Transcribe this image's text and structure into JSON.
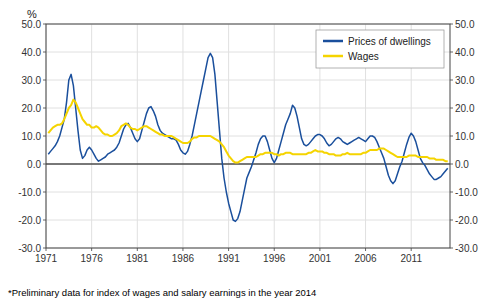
{
  "chart_data": {
    "type": "line",
    "ylabel": "%",
    "footnote": "*Preliminary data for index of wages and salary earnings in the year 2014",
    "xlim": [
      1971.0,
      2015.25
    ],
    "xticks": [
      1971,
      1976,
      1981,
      1986,
      1991,
      1996,
      2001,
      2006,
      2011
    ],
    "ylim": [
      -30.0,
      50.0
    ],
    "yticks": [
      {
        "value": -30.0,
        "label": "-30.0"
      },
      {
        "value": -20.0,
        "label": "-20.0"
      },
      {
        "value": -10.0,
        "label": "-10.0"
      },
      {
        "value": 0.0,
        "label": "0.0"
      },
      {
        "value": 10.0,
        "label": "10.0"
      },
      {
        "value": 20.0,
        "label": "20.0"
      },
      {
        "value": 30.0,
        "label": "30.0"
      },
      {
        "value": 40.0,
        "label": "40.0"
      },
      {
        "value": 50.0,
        "label": "50.0"
      }
    ],
    "y2lim": [
      -30.0,
      50.0
    ],
    "y2ticks": [
      {
        "value": -30.0,
        "label": "-30.0"
      },
      {
        "value": -20.0,
        "label": "-20.0"
      },
      {
        "value": -10.0,
        "label": "-10.0"
      },
      {
        "value": 0.0,
        "label": "0.0"
      },
      {
        "value": 10.0,
        "label": "10.0"
      },
      {
        "value": 20.0,
        "label": "20.0"
      },
      {
        "value": 30.0,
        "label": "30.0"
      },
      {
        "value": 40.0,
        "label": "40.0"
      },
      {
        "value": 50.0,
        "label": "50.0"
      }
    ],
    "grid": true,
    "legend": "upper right",
    "x": [
      1971.25,
      1971.5,
      1971.75,
      1972.0,
      1972.25,
      1972.5,
      1972.75,
      1973.0,
      1973.25,
      1973.5,
      1973.75,
      1974.0,
      1974.25,
      1974.5,
      1974.75,
      1975.0,
      1975.25,
      1975.5,
      1975.75,
      1976.0,
      1976.25,
      1976.5,
      1976.75,
      1977.0,
      1977.25,
      1977.5,
      1977.75,
      1978.0,
      1978.25,
      1978.5,
      1978.75,
      1979.0,
      1979.25,
      1979.5,
      1979.75,
      1980.0,
      1980.25,
      1980.5,
      1980.75,
      1981.0,
      1981.25,
      1981.5,
      1981.75,
      1982.0,
      1982.25,
      1982.5,
      1982.75,
      1983.0,
      1983.25,
      1983.5,
      1983.75,
      1984.0,
      1984.25,
      1984.5,
      1984.75,
      1985.0,
      1985.25,
      1985.5,
      1985.75,
      1986.0,
      1986.25,
      1986.5,
      1986.75,
      1987.0,
      1987.25,
      1987.5,
      1987.75,
      1988.0,
      1988.25,
      1988.5,
      1988.75,
      1989.0,
      1989.25,
      1989.5,
      1989.75,
      1990.0,
      1990.25,
      1990.5,
      1990.75,
      1991.0,
      1991.25,
      1991.5,
      1991.75,
      1992.0,
      1992.25,
      1992.5,
      1992.75,
      1993.0,
      1993.25,
      1993.5,
      1993.75,
      1994.0,
      1994.25,
      1994.5,
      1994.75,
      1995.0,
      1995.25,
      1995.5,
      1995.75,
      1996.0,
      1996.25,
      1996.5,
      1996.75,
      1997.0,
      1997.25,
      1997.5,
      1997.75,
      1998.0,
      1998.25,
      1998.5,
      1998.75,
      1999.0,
      1999.25,
      1999.5,
      1999.75,
      2000.0,
      2000.25,
      2000.5,
      2000.75,
      2001.0,
      2001.25,
      2001.5,
      2001.75,
      2002.0,
      2002.25,
      2002.5,
      2002.75,
      2003.0,
      2003.25,
      2003.5,
      2003.75,
      2004.0,
      2004.25,
      2004.5,
      2004.75,
      2005.0,
      2005.25,
      2005.5,
      2005.75,
      2006.0,
      2006.25,
      2006.5,
      2006.75,
      2007.0,
      2007.25,
      2007.5,
      2007.75,
      2008.0,
      2008.25,
      2008.5,
      2008.75,
      2009.0,
      2009.25,
      2009.5,
      2009.75,
      2010.0,
      2010.25,
      2010.5,
      2010.75,
      2011.0,
      2011.25,
      2011.5,
      2011.75,
      2012.0,
      2012.25,
      2012.5,
      2012.75,
      2013.0,
      2013.25,
      2013.5,
      2013.75,
      2014.0,
      2014.25,
      2014.5,
      2014.75,
      2015.0
    ],
    "series": [
      {
        "name": "Prices of dwellings",
        "color": "#1a4f9c",
        "values": [
          3.5,
          4.5,
          5.5,
          6.5,
          8.0,
          10.0,
          13.0,
          16.0,
          22.0,
          30.0,
          32.0,
          28.0,
          20.0,
          12.0,
          5.0,
          2.0,
          3.0,
          5.0,
          6.0,
          5.0,
          3.5,
          2.0,
          1.0,
          1.5,
          2.0,
          2.5,
          3.5,
          4.0,
          4.5,
          5.0,
          6.0,
          7.5,
          10.0,
          12.5,
          14.0,
          14.5,
          13.0,
          11.0,
          9.0,
          8.0,
          9.0,
          12.0,
          15.0,
          18.0,
          20.0,
          20.5,
          19.0,
          17.0,
          14.0,
          12.0,
          11.0,
          10.5,
          10.0,
          9.5,
          9.0,
          9.0,
          8.5,
          7.0,
          5.0,
          4.0,
          3.5,
          4.5,
          7.0,
          10.0,
          14.0,
          18.0,
          22.0,
          26.0,
          30.0,
          34.0,
          38.0,
          39.5,
          38.0,
          32.0,
          22.0,
          12.0,
          2.0,
          -5.0,
          -10.0,
          -14.0,
          -17.0,
          -20.0,
          -20.5,
          -19.5,
          -17.0,
          -13.0,
          -9.0,
          -5.0,
          -3.0,
          -1.0,
          1.5,
          4.0,
          7.0,
          9.0,
          10.0,
          10.0,
          8.0,
          5.0,
          2.0,
          0.5,
          2.0,
          5.0,
          8.0,
          11.0,
          14.0,
          16.0,
          18.0,
          21.0,
          20.0,
          17.0,
          13.0,
          9.0,
          7.0,
          6.5,
          7.0,
          8.0,
          9.0,
          10.0,
          10.5,
          10.5,
          10.0,
          9.0,
          7.5,
          6.5,
          7.0,
          8.0,
          9.0,
          9.5,
          9.0,
          8.0,
          7.5,
          7.0,
          7.5,
          8.0,
          8.5,
          9.0,
          9.5,
          9.0,
          8.5,
          8.0,
          9.0,
          10.0,
          10.0,
          9.5,
          8.0,
          6.0,
          4.0,
          2.0,
          -1.0,
          -4.0,
          -6.0,
          -7.0,
          -6.0,
          -3.5,
          -1.0,
          1.0,
          4.0,
          7.0,
          9.5,
          11.0,
          10.0,
          8.0,
          5.0,
          2.0,
          0.5,
          -0.5,
          -2.0,
          -3.5,
          -4.5,
          -5.5,
          -5.5,
          -5.0,
          -4.5,
          -3.5,
          -2.5,
          -1.5
        ]
      },
      {
        "name": "Wages",
        "color": "#f5d400",
        "values": [
          11.0,
          12.0,
          13.0,
          13.5,
          14.0,
          14.0,
          14.5,
          16.0,
          18.0,
          20.0,
          21.0,
          23.0,
          22.0,
          20.0,
          18.0,
          16.0,
          15.0,
          14.0,
          14.0,
          13.0,
          13.0,
          13.5,
          13.0,
          12.0,
          11.0,
          10.5,
          10.5,
          10.0,
          10.0,
          10.5,
          11.0,
          12.0,
          13.5,
          14.0,
          14.5,
          14.0,
          13.0,
          12.5,
          12.5,
          12.0,
          12.5,
          13.0,
          13.5,
          13.5,
          13.0,
          12.5,
          12.0,
          11.5,
          11.0,
          10.5,
          10.5,
          10.0,
          10.0,
          10.0,
          10.0,
          9.5,
          9.0,
          8.5,
          8.0,
          7.5,
          7.5,
          7.5,
          8.0,
          9.0,
          9.5,
          9.5,
          10.0,
          10.0,
          10.0,
          10.0,
          10.0,
          10.0,
          9.5,
          9.0,
          8.5,
          8.0,
          7.0,
          6.0,
          4.5,
          3.0,
          2.0,
          1.0,
          0.5,
          0.5,
          1.0,
          1.5,
          2.0,
          2.5,
          2.5,
          2.5,
          2.5,
          2.5,
          3.0,
          3.5,
          3.5,
          4.0,
          4.0,
          4.0,
          4.0,
          3.5,
          3.5,
          3.0,
          3.5,
          3.5,
          4.0,
          4.0,
          4.0,
          3.5,
          3.5,
          3.5,
          3.5,
          3.5,
          3.5,
          3.5,
          4.0,
          4.0,
          4.5,
          5.0,
          4.5,
          4.5,
          4.5,
          4.0,
          4.0,
          3.5,
          3.5,
          3.5,
          3.0,
          3.0,
          3.0,
          3.5,
          3.5,
          4.0,
          3.5,
          3.5,
          3.5,
          3.5,
          3.5,
          3.5,
          4.0,
          4.0,
          4.5,
          5.0,
          5.0,
          5.0,
          5.0,
          5.5,
          5.5,
          5.5,
          5.0,
          4.5,
          4.0,
          3.5,
          3.0,
          2.5,
          2.5,
          2.5,
          2.5,
          2.5,
          3.0,
          3.0,
          3.0,
          3.0,
          2.5,
          2.5,
          2.5,
          2.5,
          2.5,
          2.0,
          2.0,
          2.0,
          1.5,
          1.5,
          1.5,
          1.5,
          1.0,
          1.0
        ]
      }
    ]
  }
}
